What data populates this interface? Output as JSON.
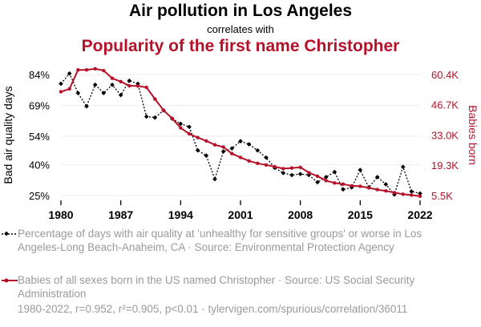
{
  "header": {
    "title": "Air pollution in Los Angeles",
    "subtitle": "correlates with",
    "title2": "Popularity of the first name Christopher"
  },
  "legend": {
    "series1": "Percentage of days with air quality at 'unhealthy for sensitive groups' or worse in Los Angeles-Long Beach-Anaheim, CA · Source: Environmental Protection Agency",
    "series2": "Babies of all sexes born in the US named Christopher · Source: US Social Security Administration"
  },
  "footer": "1980-2022, r=0.952, r²=0.905, p<0.01 · tylervigen.com/spurious/correlation/36011",
  "colors": {
    "series1": "#000000",
    "series2": "#b5122a",
    "grid": "#eeeeee"
  },
  "chart_data": {
    "type": "line",
    "x": [
      1980,
      1981,
      1982,
      1983,
      1984,
      1985,
      1986,
      1987,
      1988,
      1989,
      1990,
      1991,
      1992,
      1993,
      1994,
      1995,
      1996,
      1997,
      1998,
      1999,
      2000,
      2001,
      2002,
      2003,
      2004,
      2005,
      2006,
      2007,
      2008,
      2009,
      2010,
      2011,
      2012,
      2013,
      2014,
      2015,
      2016,
      2017,
      2018,
      2019,
      2020,
      2021,
      2022
    ],
    "xticks": [
      1980,
      1987,
      1994,
      2001,
      2008,
      2015,
      2022
    ],
    "grid": true,
    "series": [
      {
        "name": "Percentage of days with air quality at 'unhealthy for sensitive groups' or worse in Los Angeles-Long Beach-Anaheim, CA",
        "axis": "left",
        "style": "dotted",
        "marker": "diamond",
        "values": [
          79.5,
          84.5,
          75,
          68.5,
          79,
          75,
          79,
          74,
          81,
          79.5,
          63.5,
          63,
          66.5,
          62.5,
          60,
          58.5,
          47,
          44.5,
          33,
          46.5,
          48,
          51.5,
          50,
          47,
          43.5,
          38.5,
          36,
          35,
          35.5,
          35,
          31.5,
          34,
          36.5,
          28,
          29,
          37.5,
          29,
          34,
          30.5,
          25.5,
          39,
          27,
          26
        ]
      },
      {
        "name": "Babies of all sexes born in the US named Christopher",
        "axis": "right",
        "style": "solid",
        "marker": "circle",
        "values": [
          52.6,
          53.9,
          62.5,
          62.5,
          63,
          62.2,
          58.7,
          57.2,
          55.3,
          55.2,
          54.6,
          49.3,
          44.2,
          40.5,
          36.2,
          33.5,
          31.8,
          30.3,
          28.5,
          27.5,
          24.5,
          22.8,
          21.2,
          20.1,
          19.4,
          18.6,
          17.7,
          18,
          18.3,
          15.9,
          14.3,
          12.3,
          11.2,
          10.7,
          9.9,
          9.7,
          9,
          8.2,
          7.6,
          6.8,
          6.1,
          5.7,
          5.2
        ]
      }
    ],
    "y_left": {
      "label": "Bad air quality days",
      "ticks": [
        25,
        40,
        54,
        69,
        84
      ],
      "tick_labels": [
        "25%",
        "40%",
        "54%",
        "69%",
        "84%"
      ],
      "range": [
        25,
        84
      ]
    },
    "y_right": {
      "label": "Babies born",
      "ticks": [
        5.5,
        19.3,
        33.0,
        46.7,
        60.4
      ],
      "tick_labels": [
        "5.5K",
        "19.3K",
        "33.0K",
        "46.7K",
        "60.4K"
      ],
      "range": [
        5.5,
        60.4
      ]
    }
  }
}
